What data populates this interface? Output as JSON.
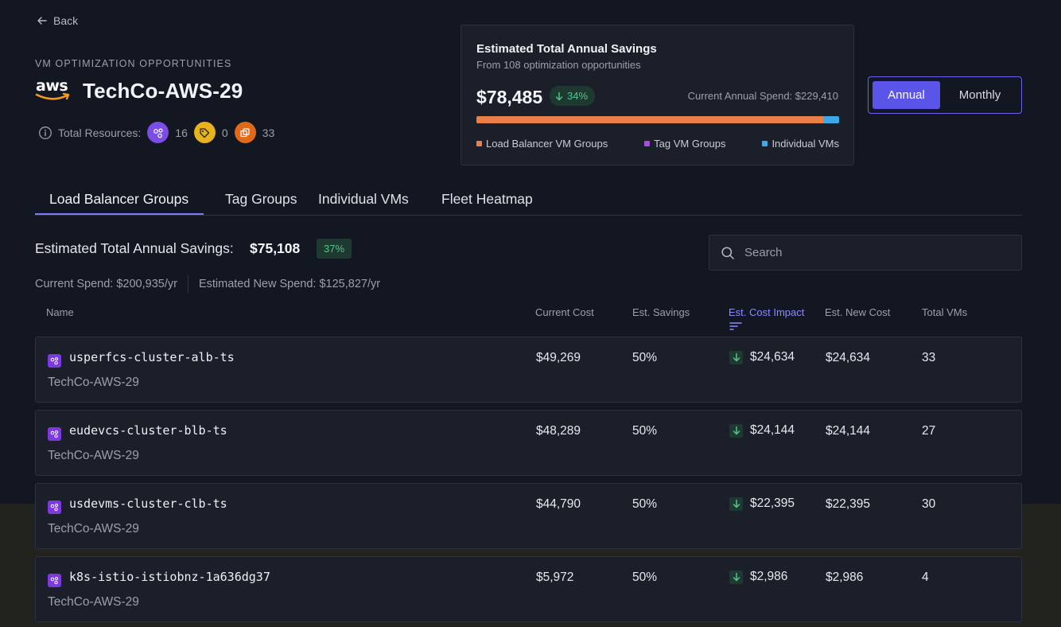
{
  "nav": {
    "back_label": "Back"
  },
  "header": {
    "eyebrow": "VM OPTIMIZATION OPPORTUNITIES",
    "logo_text": "aws",
    "title": "TechCo-AWS-29",
    "resources_label": "Total Resources:",
    "resources": [
      {
        "icon": "cluster-icon",
        "color": "#7b4de6",
        "count": "16"
      },
      {
        "icon": "tag-icon",
        "color": "#e6b31d",
        "count": "0"
      },
      {
        "icon": "copy-icon",
        "color": "#e06a1a",
        "count": "33"
      }
    ]
  },
  "savings_card": {
    "title": "Estimated Total Annual Savings",
    "subtitle": "From 108 optimization opportunities",
    "amount": "$78,485",
    "percent": "34%",
    "current_spend": "Current Annual Spend: $229,410",
    "bar": [
      {
        "label": "Load Balancer VM Groups",
        "fraction": 0.957,
        "color": "#e8804a"
      },
      {
        "label": "Tag VM Groups",
        "fraction": 0.0,
        "color": "#a54ee0"
      },
      {
        "label": "Individual VMs",
        "fraction": 0.043,
        "color": "#3fa9e8"
      }
    ]
  },
  "period_toggle": {
    "options": [
      "Annual",
      "Monthly"
    ],
    "selected": "Annual"
  },
  "tabs": [
    "Load Balancer Groups",
    "Tag Groups",
    "Individual VMs",
    "Fleet Heatmap"
  ],
  "active_tab": "Load Balancer Groups",
  "summary": {
    "label": "Estimated Total Annual Savings:",
    "amount": "$75,108",
    "percent": "37%",
    "current_spend": "Current Spend: $200,935/yr",
    "new_spend": "Estimated New Spend: $125,827/yr"
  },
  "search": {
    "placeholder": "Search",
    "value": ""
  },
  "table": {
    "columns": [
      "Name",
      "Current Cost",
      "Est. Savings",
      "Est. Cost Impact",
      "Est. New Cost",
      "Total VMs"
    ],
    "sorted_column": "Est. Cost Impact",
    "rows": [
      {
        "name": "usperfcs-cluster-alb-ts",
        "account": "TechCo-AWS-29",
        "current_cost": "$49,269",
        "savings": "50%",
        "impact": "$24,634",
        "new_cost": "$24,634",
        "vms": "33"
      },
      {
        "name": "eudevcs-cluster-blb-ts",
        "account": "TechCo-AWS-29",
        "current_cost": "$48,289",
        "savings": "50%",
        "impact": "$24,144",
        "new_cost": "$24,144",
        "vms": "27"
      },
      {
        "name": "usdevms-cluster-clb-ts",
        "account": "TechCo-AWS-29",
        "current_cost": "$44,790",
        "savings": "50%",
        "impact": "$22,395",
        "new_cost": "$22,395",
        "vms": "30"
      },
      {
        "name": "k8s-istio-istiobnz-1a636dg37",
        "account": "TechCo-AWS-29",
        "current_cost": "$5,972",
        "savings": "50%",
        "impact": "$2,986",
        "new_cost": "$2,986",
        "vms": "4"
      }
    ]
  },
  "colors": {
    "accent": "#5b54e8",
    "positive": "#54c58f",
    "background": "#131722",
    "card": "#1b1f2a"
  }
}
